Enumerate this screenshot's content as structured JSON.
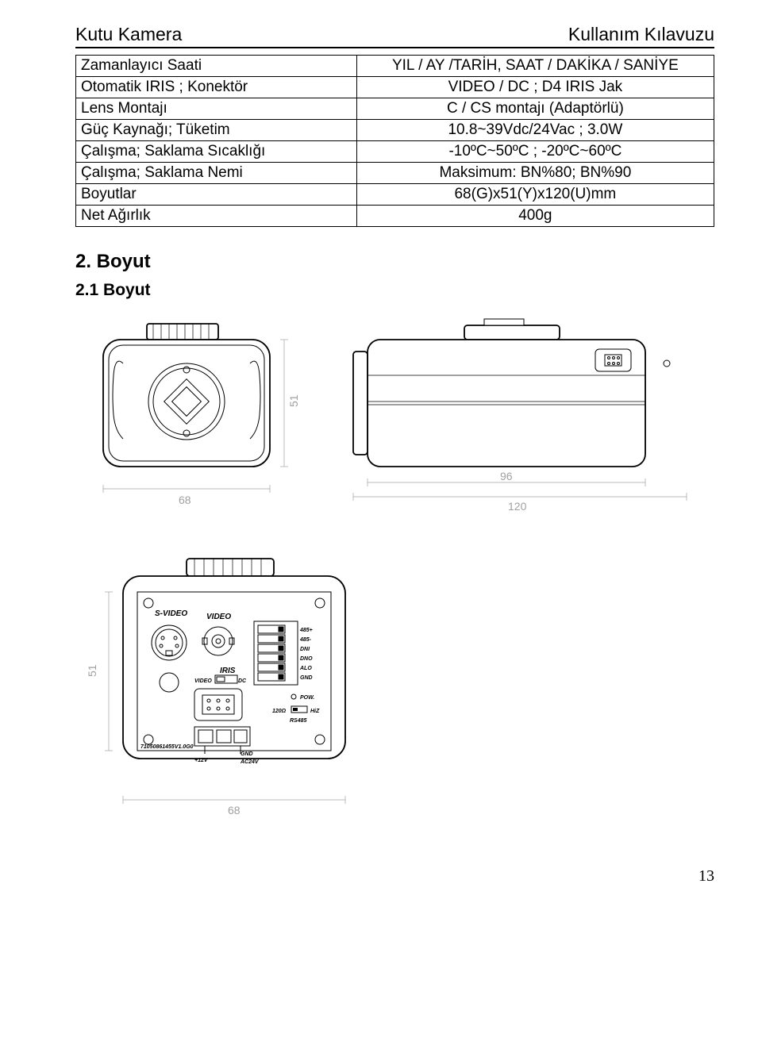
{
  "header": {
    "left": "Kutu Kamera",
    "right": "Kullanım Kılavuzu"
  },
  "spec_table": {
    "rows": [
      {
        "label": "Zamanlayıcı Saati",
        "value": "YIL / AY /TARİH, SAAT / DAKİKA / SANİYE"
      },
      {
        "label": "Otomatik IRIS ; Konektör",
        "value": "VIDEO / DC ; D4 IRIS Jak",
        "sep": true
      },
      {
        "label": "Lens Montajı",
        "value": "C / CS montajı (Adaptörlü)"
      },
      {
        "label": "Güç Kaynağı; Tüketim",
        "value": "10.8~39Vdc/24Vac ; 3.0W"
      },
      {
        "label": "Çalışma; Saklama Sıcaklığı",
        "value": "-10ºC~50ºC ; -20ºC~60ºC"
      },
      {
        "label": "Çalışma; Saklama Nemi",
        "value": "Maksimum: BN%80; BN%90"
      },
      {
        "label": "Boyutlar",
        "value": "68(G)x51(Y)x120(U)mm",
        "sep": true
      },
      {
        "label": "Net Ağırlık",
        "value": "400g",
        "sep": true
      }
    ]
  },
  "section": {
    "title": "2. Boyut",
    "subtitle": "2.1 Boyut"
  },
  "drawings": {
    "front": {
      "width_dim": "68",
      "height_dim": "51"
    },
    "side": {
      "body_dim": "96",
      "total_dim": "120"
    },
    "back": {
      "width_dim": "68",
      "height_dim": "51",
      "labels": {
        "svideo": "S-VIDEO",
        "video": "VIDEO",
        "iris": "IRIS",
        "iris_video": "VIDEO",
        "iris_dc": "DC",
        "pins": [
          "485+",
          "485-",
          "DNI",
          "DNO",
          "ALO",
          "GND"
        ],
        "pow": "POW.",
        "ohm": "120Ω",
        "hiz": "HiZ",
        "rs485": "RS485",
        "plus12v": "+12V",
        "gnd": "GND",
        "ac24v": "AC24V",
        "pcb": "71050861455V1.0G0"
      }
    }
  },
  "page_number": "13"
}
